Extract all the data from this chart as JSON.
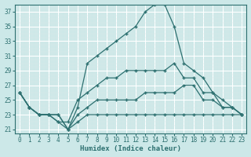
{
  "xlabel": "Humidex (Indice chaleur)",
  "bg_color": "#cce8e8",
  "grid_color": "#ffffff",
  "grid_minor_color": "#ddeaea",
  "line_color": "#2d7070",
  "xlim": [
    -0.5,
    23.5
  ],
  "ylim": [
    20.5,
    38
  ],
  "xticks": [
    0,
    1,
    2,
    3,
    4,
    5,
    6,
    7,
    8,
    9,
    10,
    11,
    12,
    13,
    14,
    15,
    16,
    17,
    18,
    19,
    20,
    21,
    22,
    23
  ],
  "yticks": [
    21,
    23,
    25,
    27,
    29,
    31,
    33,
    35,
    37
  ],
  "line1_x": [
    0,
    1,
    2,
    3,
    4,
    5,
    6,
    7,
    8,
    9,
    10,
    11,
    12,
    13,
    14,
    15,
    16,
    17,
    18,
    19,
    20,
    21,
    22,
    23
  ],
  "line1_y": [
    26,
    24,
    23,
    23,
    23,
    21,
    22,
    23,
    23,
    23,
    23,
    23,
    23,
    23,
    23,
    23,
    23,
    23,
    23,
    23,
    23,
    23,
    23,
    23
  ],
  "line2_x": [
    0,
    1,
    2,
    3,
    4,
    5,
    6,
    7,
    8,
    9,
    10,
    11,
    12,
    13,
    14,
    15,
    16,
    17,
    18,
    19,
    20,
    21,
    22,
    23
  ],
  "line2_y": [
    26,
    24,
    23,
    23,
    23,
    21,
    23,
    24,
    25,
    25,
    25,
    25,
    25,
    26,
    26,
    26,
    26,
    27,
    27,
    25,
    25,
    24,
    24,
    23
  ],
  "line3_x": [
    0,
    1,
    2,
    3,
    4,
    5,
    6,
    7,
    8,
    9,
    10,
    11,
    12,
    13,
    14,
    15,
    16,
    17,
    18,
    19,
    20,
    21,
    22,
    23
  ],
  "line3_y": [
    26,
    24,
    23,
    23,
    22,
    22,
    25,
    26,
    27,
    28,
    28,
    29,
    29,
    29,
    29,
    29,
    30,
    28,
    28,
    26,
    26,
    24,
    24,
    23
  ],
  "line4_x": [
    0,
    1,
    2,
    3,
    4,
    5,
    6,
    7,
    8,
    9,
    10,
    11,
    12,
    13,
    14,
    15,
    16,
    17,
    18,
    19,
    20,
    21,
    22,
    23
  ],
  "line4_y": [
    26,
    24,
    23,
    23,
    22,
    21,
    24,
    30,
    31,
    32,
    33,
    34,
    35,
    37,
    38,
    38,
    35,
    30,
    29,
    28,
    26,
    25,
    24,
    23
  ]
}
